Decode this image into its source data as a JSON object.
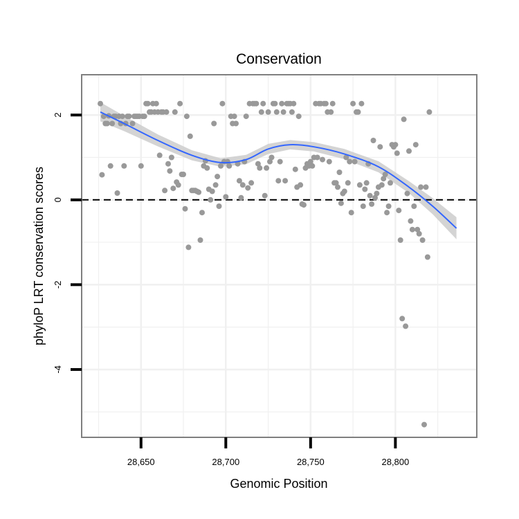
{
  "chart_data": {
    "type": "scatter",
    "title": "Conservation",
    "xlabel": "Genomic Position",
    "ylabel": "phyloP LRT conservation scores",
    "xlim": [
      28615,
      28848
    ],
    "ylim": [
      -5.6,
      2.95
    ],
    "x_ticks": [
      28650,
      28700,
      28750,
      28800
    ],
    "x_tick_labels": [
      "28,650",
      "28,700",
      "28,750",
      "28,800"
    ],
    "y_ticks": [
      -4,
      -2,
      0,
      2
    ],
    "y_tick_labels": [
      "-4",
      "-2",
      "0",
      "2"
    ],
    "grid": true,
    "reference_line": {
      "y": 0,
      "style": "dashed"
    },
    "colors": {
      "points": "#999999",
      "smooth_line": "#3366ff",
      "ribbon": "#cccccc",
      "panel_border": "#7f7f7f",
      "grid": "#f0f0f0"
    },
    "smooth": [
      {
        "x": 28626,
        "y": 2.07,
        "lo": 1.85,
        "hi": 2.3
      },
      {
        "x": 28640,
        "y": 1.8,
        "lo": 1.62,
        "hi": 1.98
      },
      {
        "x": 28660,
        "y": 1.4,
        "lo": 1.26,
        "hi": 1.54
      },
      {
        "x": 28680,
        "y": 1.05,
        "lo": 0.93,
        "hi": 1.17
      },
      {
        "x": 28697,
        "y": 0.88,
        "lo": 0.78,
        "hi": 0.98
      },
      {
        "x": 28712,
        "y": 0.95,
        "lo": 0.84,
        "hi": 1.06
      },
      {
        "x": 28725,
        "y": 1.2,
        "lo": 1.08,
        "hi": 1.32
      },
      {
        "x": 28738,
        "y": 1.3,
        "lo": 1.19,
        "hi": 1.41
      },
      {
        "x": 28752,
        "y": 1.25,
        "lo": 1.14,
        "hi": 1.36
      },
      {
        "x": 28770,
        "y": 1.08,
        "lo": 0.96,
        "hi": 1.2
      },
      {
        "x": 28790,
        "y": 0.78,
        "lo": 0.65,
        "hi": 0.91
      },
      {
        "x": 28808,
        "y": 0.3,
        "lo": 0.16,
        "hi": 0.44
      },
      {
        "x": 28822,
        "y": -0.15,
        "lo": -0.34,
        "hi": 0.04
      },
      {
        "x": 28836,
        "y": -0.67,
        "lo": -0.93,
        "hi": -0.41
      }
    ],
    "points": [
      [
        28626,
        2.27
      ],
      [
        28627,
        0.59
      ],
      [
        28628,
        1.97
      ],
      [
        28629,
        1.8
      ],
      [
        28630,
        1.8
      ],
      [
        28631,
        1.98
      ],
      [
        28632,
        0.8
      ],
      [
        28633,
        1.8
      ],
      [
        28634,
        1.97
      ],
      [
        28635,
        1.97
      ],
      [
        28636,
        0.16
      ],
      [
        28637,
        1.97
      ],
      [
        28638,
        1.8
      ],
      [
        28639,
        1.97
      ],
      [
        28640,
        0.8
      ],
      [
        28641,
        1.8
      ],
      [
        28642,
        1.97
      ],
      [
        28643,
        1.97
      ],
      [
        28645,
        1.8
      ],
      [
        28646,
        1.97
      ],
      [
        28647,
        1.97
      ],
      [
        28648,
        1.97
      ],
      [
        28649,
        1.97
      ],
      [
        28650,
        0.8
      ],
      [
        28651,
        1.97
      ],
      [
        28652,
        1.97
      ],
      [
        28653,
        2.27
      ],
      [
        28654,
        2.27
      ],
      [
        28655,
        2.07
      ],
      [
        28656,
        2.07
      ],
      [
        28657,
        2.27
      ],
      [
        28658,
        2.07
      ],
      [
        28659,
        2.27
      ],
      [
        28660,
        2.07
      ],
      [
        28661,
        1.05
      ],
      [
        28662,
        2.07
      ],
      [
        28663,
        2.07
      ],
      [
        28664,
        0.22
      ],
      [
        28665,
        2.07
      ],
      [
        28666,
        0.85
      ],
      [
        28667,
        0.68
      ],
      [
        28668,
        1.0
      ],
      [
        28669,
        0.27
      ],
      [
        28670,
        2.07
      ],
      [
        28671,
        0.42
      ],
      [
        28672,
        0.35
      ],
      [
        28673,
        2.27
      ],
      [
        28674,
        0.6
      ],
      [
        28675,
        0.6
      ],
      [
        28676,
        -0.21
      ],
      [
        28677,
        1.97
      ],
      [
        28678,
        -1.12
      ],
      [
        28679,
        1.5
      ],
      [
        28680,
        0.22
      ],
      [
        28681,
        0.22
      ],
      [
        28682,
        0.22
      ],
      [
        28683,
        0.2
      ],
      [
        28684,
        0.18
      ],
      [
        28685,
        -0.95
      ],
      [
        28686,
        -0.3
      ],
      [
        28687,
        0.8
      ],
      [
        28688,
        0.92
      ],
      [
        28689,
        0.75
      ],
      [
        28690,
        0.25
      ],
      [
        28691,
        0.0
      ],
      [
        28692,
        0.2
      ],
      [
        28693,
        1.8
      ],
      [
        28694,
        0.35
      ],
      [
        28695,
        0.55
      ],
      [
        28696,
        -0.15
      ],
      [
        28697,
        0.8
      ],
      [
        28698,
        2.27
      ],
      [
        28699,
        0.9
      ],
      [
        28700,
        0.07
      ],
      [
        28701,
        0.9
      ],
      [
        28702,
        0.8
      ],
      [
        28703,
        1.97
      ],
      [
        28704,
        1.8
      ],
      [
        28705,
        1.97
      ],
      [
        28706,
        1.8
      ],
      [
        28707,
        0.85
      ],
      [
        28708,
        0.45
      ],
      [
        28709,
        0.05
      ],
      [
        28710,
        0.35
      ],
      [
        28711,
        0.9
      ],
      [
        28712,
        1.97
      ],
      [
        28713,
        0.28
      ],
      [
        28714,
        2.27
      ],
      [
        28715,
        0.4
      ],
      [
        28716,
        2.27
      ],
      [
        28717,
        2.27
      ],
      [
        28718,
        2.27
      ],
      [
        28719,
        0.85
      ],
      [
        28720,
        0.75
      ],
      [
        28721,
        2.07
      ],
      [
        28722,
        2.27
      ],
      [
        28723,
        0.1
      ],
      [
        28724,
        0.75
      ],
      [
        28725,
        2.07
      ],
      [
        28726,
        0.9
      ],
      [
        28727,
        1.0
      ],
      [
        28728,
        2.27
      ],
      [
        28729,
        2.27
      ],
      [
        28730,
        2.07
      ],
      [
        28731,
        0.45
      ],
      [
        28732,
        0.9
      ],
      [
        28733,
        2.27
      ],
      [
        28734,
        2.07
      ],
      [
        28735,
        0.45
      ],
      [
        28736,
        2.27
      ],
      [
        28737,
        2.27
      ],
      [
        28738,
        2.27
      ],
      [
        28739,
        2.07
      ],
      [
        28740,
        2.27
      ],
      [
        28741,
        0.72
      ],
      [
        28742,
        0.3
      ],
      [
        28743,
        1.97
      ],
      [
        28744,
        0.35
      ],
      [
        28745,
        -0.1
      ],
      [
        28746,
        -0.12
      ],
      [
        28747,
        0.75
      ],
      [
        28748,
        0.85
      ],
      [
        28749,
        0.8
      ],
      [
        28750,
        0.9
      ],
      [
        28751,
        0.8
      ],
      [
        28752,
        1.0
      ],
      [
        28753,
        2.27
      ],
      [
        28754,
        1.0
      ],
      [
        28755,
        2.27
      ],
      [
        28756,
        2.27
      ],
      [
        28757,
        0.95
      ],
      [
        28758,
        2.27
      ],
      [
        28759,
        2.27
      ],
      [
        28760,
        2.07
      ],
      [
        28761,
        0.9
      ],
      [
        28762,
        2.07
      ],
      [
        28763,
        2.27
      ],
      [
        28764,
        0.4
      ],
      [
        28765,
        0.4
      ],
      [
        28766,
        0.3
      ],
      [
        28767,
        0.65
      ],
      [
        28768,
        -0.08
      ],
      [
        28769,
        0.15
      ],
      [
        28770,
        0.2
      ],
      [
        28771,
        1.0
      ],
      [
        28772,
        0.4
      ],
      [
        28773,
        0.9
      ],
      [
        28774,
        -0.3
      ],
      [
        28775,
        2.27
      ],
      [
        28776,
        0.9
      ],
      [
        28777,
        2.07
      ],
      [
        28778,
        2.07
      ],
      [
        28779,
        0.35
      ],
      [
        28780,
        2.27
      ],
      [
        28781,
        -0.15
      ],
      [
        28782,
        0.25
      ],
      [
        28783,
        0.4
      ],
      [
        28784,
        0.85
      ],
      [
        28785,
        0.1
      ],
      [
        28786,
        -0.1
      ],
      [
        28787,
        1.4
      ],
      [
        28788,
        0.05
      ],
      [
        28789,
        0.15
      ],
      [
        28790,
        0.3
      ],
      [
        28791,
        1.25
      ],
      [
        28792,
        0.35
      ],
      [
        28793,
        0.5
      ],
      [
        28794,
        0.6
      ],
      [
        28795,
        -0.3
      ],
      [
        28796,
        -0.15
      ],
      [
        28797,
        0.4
      ],
      [
        28798,
        1.3
      ],
      [
        28799,
        1.25
      ],
      [
        28800,
        1.3
      ],
      [
        28801,
        1.1
      ],
      [
        28802,
        -0.25
      ],
      [
        28803,
        -0.95
      ],
      [
        28804,
        -2.8
      ],
      [
        28805,
        1.9
      ],
      [
        28806,
        -2.98
      ],
      [
        28807,
        0.15
      ],
      [
        28808,
        1.15
      ],
      [
        28809,
        -0.5
      ],
      [
        28810,
        -0.7
      ],
      [
        28811,
        -0.15
      ],
      [
        28812,
        1.3
      ],
      [
        28813,
        -0.7
      ],
      [
        28814,
        -0.8
      ],
      [
        28815,
        0.3
      ],
      [
        28816,
        -0.95
      ],
      [
        28817,
        -5.3
      ],
      [
        28818,
        0.3
      ],
      [
        28819,
        -1.35
      ],
      [
        28820,
        2.07
      ]
    ]
  }
}
